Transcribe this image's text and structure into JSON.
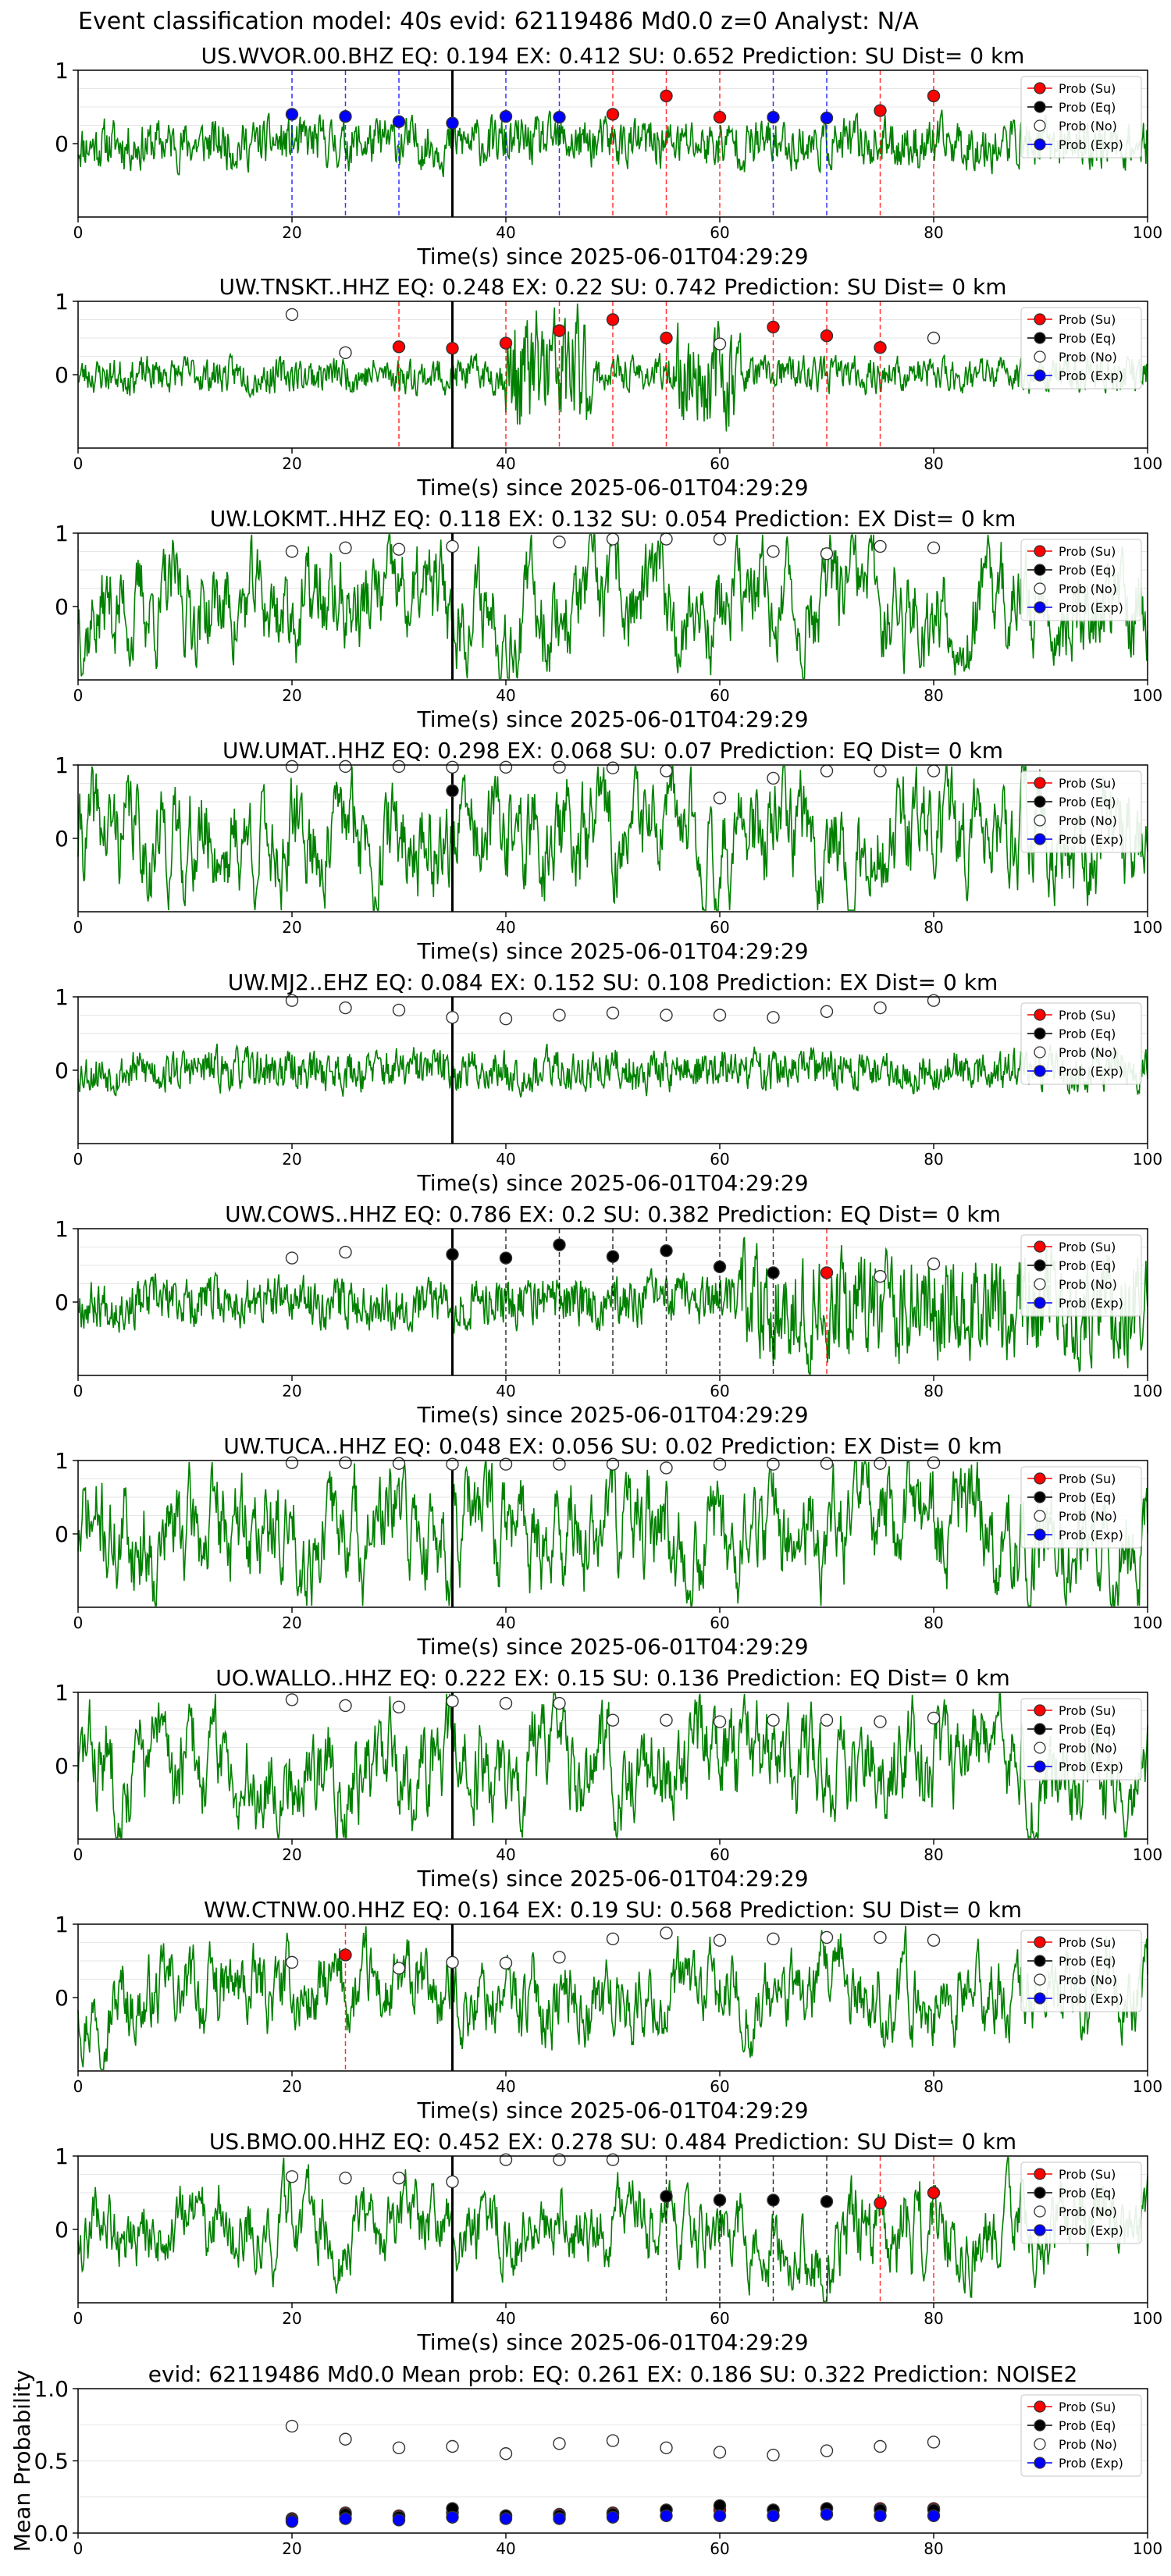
{
  "suptitle": "Event classification model: 40s evid: 62119486 Md0.0 z=0 Analyst: N/A",
  "xlabel": "Time(s) since 2025-06-01T04:29:29",
  "legend": [
    "Prob (Su)",
    "Prob (Eq)",
    "Prob (No)",
    "Prob (Exp)"
  ],
  "colors": {
    "waveform": "#008000",
    "su": "#ff0000",
    "eq": "#000000",
    "no": "#ffffff",
    "exp": "#0000ff"
  },
  "chart_data": [
    {
      "type": "line",
      "title": "US.WVOR.00.BHZ   EQ: 0.194   EX: 0.412   SU: 0.652   Prediction: SU    Dist= 0 km",
      "xlim": [
        0,
        100
      ],
      "ylim": [
        -1,
        1
      ],
      "xticks": [
        0,
        20,
        40,
        60,
        80,
        100
      ],
      "yticks": [
        1,
        0
      ],
      "vline": 35,
      "amp": 0.35,
      "seed": 11,
      "series": [
        {
          "name": "Prob (Su)",
          "x": [
            50,
            55,
            60,
            75,
            80
          ],
          "y": [
            0.4,
            0.65,
            0.36,
            0.45,
            0.65
          ]
        },
        {
          "name": "Prob (Exp)",
          "x": [
            20,
            25,
            30,
            35,
            40,
            45,
            65,
            70
          ],
          "y": [
            0.4,
            0.37,
            0.3,
            0.28,
            0.37,
            0.36,
            0.36,
            0.35
          ]
        }
      ],
      "dashes": [
        {
          "x": 20,
          "c": "exp"
        },
        {
          "x": 25,
          "c": "exp"
        },
        {
          "x": 30,
          "c": "exp"
        },
        {
          "x": 40,
          "c": "exp"
        },
        {
          "x": 45,
          "c": "exp"
        },
        {
          "x": 50,
          "c": "su"
        },
        {
          "x": 55,
          "c": "su"
        },
        {
          "x": 60,
          "c": "su"
        },
        {
          "x": 65,
          "c": "exp"
        },
        {
          "x": 70,
          "c": "exp"
        },
        {
          "x": 75,
          "c": "su"
        },
        {
          "x": 80,
          "c": "su"
        }
      ]
    },
    {
      "type": "line",
      "title": "UW.TNSKT..HHZ   EQ: 0.248   EX: 0.22   SU: 0.742   Prediction: SU    Dist= 0 km",
      "xlim": [
        0,
        100
      ],
      "ylim": [
        -1,
        1
      ],
      "xticks": [
        0,
        20,
        40,
        60,
        80,
        100
      ],
      "yticks": [
        1,
        0
      ],
      "vline": 35,
      "amp": 0.25,
      "seed": 23,
      "burst": [
        [
          40,
          48,
          0.9
        ],
        [
          56,
          62,
          0.7
        ]
      ],
      "series": [
        {
          "name": "Prob (Su)",
          "x": [
            30,
            35,
            40,
            45,
            50,
            55,
            65,
            70,
            75
          ],
          "y": [
            0.38,
            0.36,
            0.43,
            0.6,
            0.75,
            0.5,
            0.65,
            0.53,
            0.37
          ]
        },
        {
          "name": "Prob (No)",
          "x": [
            20,
            25,
            60,
            80
          ],
          "y": [
            0.82,
            0.3,
            0.42,
            0.5
          ]
        }
      ],
      "dashes": [
        {
          "x": 30,
          "c": "su"
        },
        {
          "x": 40,
          "c": "su"
        },
        {
          "x": 45,
          "c": "su"
        },
        {
          "x": 50,
          "c": "su"
        },
        {
          "x": 55,
          "c": "su"
        },
        {
          "x": 65,
          "c": "su"
        },
        {
          "x": 70,
          "c": "su"
        },
        {
          "x": 75,
          "c": "su"
        }
      ]
    },
    {
      "type": "line",
      "title": "UW.LOKMT..HHZ   EQ: 0.118   EX: 0.132   SU: 0.054   Prediction: EX    Dist= 0 km",
      "xlim": [
        0,
        100
      ],
      "ylim": [
        -1,
        1
      ],
      "xticks": [
        0,
        20,
        40,
        60,
        80,
        100
      ],
      "yticks": [
        1,
        0
      ],
      "vline": 35,
      "amp": 0.75,
      "seed": 37,
      "series": [
        {
          "name": "Prob (No)",
          "x": [
            20,
            25,
            30,
            35,
            45,
            50,
            55,
            60,
            65,
            70,
            75,
            80
          ],
          "y": [
            0.75,
            0.8,
            0.78,
            0.82,
            0.88,
            0.92,
            0.92,
            0.92,
            0.75,
            0.72,
            0.82,
            0.8
          ]
        }
      ],
      "dashes": []
    },
    {
      "type": "line",
      "title": "UW.UMAT..HHZ   EQ: 0.298   EX: 0.068   SU: 0.07   Prediction: EQ    Dist= 0 km",
      "xlim": [
        0,
        100
      ],
      "ylim": [
        -1,
        1
      ],
      "xticks": [
        0,
        20,
        40,
        60,
        80,
        100
      ],
      "yticks": [
        1,
        0
      ],
      "vline": 35,
      "amp": 0.8,
      "seed": 41,
      "series": [
        {
          "name": "Prob (No)",
          "x": [
            20,
            25,
            30,
            35,
            40,
            45,
            50,
            55,
            60,
            65,
            70,
            75,
            80
          ],
          "y": [
            0.98,
            0.98,
            0.98,
            0.97,
            0.97,
            0.97,
            0.96,
            0.92,
            0.55,
            0.82,
            0.92,
            0.92,
            0.92
          ]
        },
        {
          "name": "Prob (Eq)",
          "x": [
            35
          ],
          "y": [
            0.65
          ]
        }
      ],
      "dashes": []
    },
    {
      "type": "line",
      "title": "UW.MJ2..EHZ   EQ: 0.084   EX: 0.152   SU: 0.108   Prediction: EX    Dist= 0 km",
      "xlim": [
        0,
        100
      ],
      "ylim": [
        -1,
        1
      ],
      "xticks": [
        0,
        20,
        40,
        60,
        80,
        100
      ],
      "yticks": [
        1,
        0
      ],
      "vline": 35,
      "amp": 0.3,
      "seed": 53,
      "series": [
        {
          "name": "Prob (No)",
          "x": [
            20,
            25,
            30,
            35,
            40,
            45,
            50,
            55,
            60,
            65,
            70,
            75,
            80
          ],
          "y": [
            0.95,
            0.85,
            0.82,
            0.72,
            0.7,
            0.75,
            0.78,
            0.75,
            0.75,
            0.72,
            0.8,
            0.85,
            0.95
          ]
        }
      ],
      "dashes": []
    },
    {
      "type": "line",
      "title": "UW.COWS..HHZ   EQ: 0.786   EX: 0.2   SU: 0.382   Prediction: EQ    Dist= 0 km",
      "xlim": [
        0,
        100
      ],
      "ylim": [
        -1,
        1
      ],
      "xticks": [
        0,
        20,
        40,
        60,
        80,
        100
      ],
      "yticks": [
        1,
        0
      ],
      "vline": 35,
      "amp": 0.35,
      "seed": 67,
      "burst": [
        [
          62,
          100,
          0.75
        ]
      ],
      "series": [
        {
          "name": "Prob (Eq)",
          "x": [
            35,
            40,
            45,
            50,
            55,
            60,
            65
          ],
          "y": [
            0.65,
            0.6,
            0.78,
            0.62,
            0.7,
            0.48,
            0.4
          ]
        },
        {
          "name": "Prob (Su)",
          "x": [
            70
          ],
          "y": [
            0.4
          ]
        },
        {
          "name": "Prob (No)",
          "x": [
            20,
            25,
            75,
            80
          ],
          "y": [
            0.6,
            0.68,
            0.35,
            0.52
          ]
        }
      ],
      "dashes": [
        {
          "x": 40,
          "c": "eq"
        },
        {
          "x": 45,
          "c": "eq"
        },
        {
          "x": 50,
          "c": "eq"
        },
        {
          "x": 55,
          "c": "eq"
        },
        {
          "x": 60,
          "c": "eq"
        },
        {
          "x": 65,
          "c": "eq"
        },
        {
          "x": 70,
          "c": "su"
        }
      ]
    },
    {
      "type": "line",
      "title": "UW.TUCA..HHZ   EQ: 0.048   EX: 0.056   SU: 0.02   Prediction: EX    Dist= 0 km",
      "xlim": [
        0,
        100
      ],
      "ylim": [
        -1,
        1
      ],
      "xticks": [
        0,
        20,
        40,
        60,
        80,
        100
      ],
      "yticks": [
        1,
        0
      ],
      "vline": 35,
      "amp": 0.8,
      "seed": 71,
      "series": [
        {
          "name": "Prob (No)",
          "x": [
            20,
            25,
            30,
            35,
            40,
            45,
            50,
            55,
            60,
            65,
            70,
            75,
            80
          ],
          "y": [
            0.97,
            0.97,
            0.96,
            0.95,
            0.95,
            0.95,
            0.95,
            0.9,
            0.95,
            0.95,
            0.96,
            0.96,
            0.97
          ]
        }
      ],
      "dashes": []
    },
    {
      "type": "line",
      "title": "UO.WALLO..HHZ   EQ: 0.222   EX: 0.15   SU: 0.136   Prediction: EQ    Dist= 0 km",
      "xlim": [
        0,
        100
      ],
      "ylim": [
        -1,
        1
      ],
      "xticks": [
        0,
        20,
        40,
        60,
        80,
        100
      ],
      "yticks": [
        1,
        0
      ],
      "vline": 35,
      "amp": 0.75,
      "seed": 83,
      "series": [
        {
          "name": "Prob (No)",
          "x": [
            20,
            25,
            30,
            35,
            40,
            45,
            50,
            55,
            60,
            65,
            70,
            75,
            80
          ],
          "y": [
            0.9,
            0.82,
            0.8,
            0.88,
            0.85,
            0.85,
            0.62,
            0.62,
            0.6,
            0.62,
            0.62,
            0.6,
            0.65
          ]
        }
      ],
      "dashes": []
    },
    {
      "type": "line",
      "title": "WW.CTNW.00.HHZ   EQ: 0.164   EX: 0.19   SU: 0.568   Prediction: SU    Dist= 0 km",
      "xlim": [
        0,
        100
      ],
      "ylim": [
        -1,
        1
      ],
      "xticks": [
        0,
        20,
        40,
        60,
        80,
        100
      ],
      "yticks": [
        1,
        0
      ],
      "vline": 35,
      "amp": 0.6,
      "seed": 97,
      "series": [
        {
          "name": "Prob (Su)",
          "x": [
            25
          ],
          "y": [
            0.58
          ]
        },
        {
          "name": "Prob (No)",
          "x": [
            20,
            30,
            35,
            40,
            45,
            50,
            55,
            60,
            65,
            70,
            75,
            80
          ],
          "y": [
            0.48,
            0.4,
            0.48,
            0.47,
            0.55,
            0.8,
            0.88,
            0.78,
            0.8,
            0.82,
            0.82,
            0.78
          ]
        }
      ],
      "dashes": [
        {
          "x": 25,
          "c": "su"
        }
      ]
    },
    {
      "type": "line",
      "title": "US.BMO.00.HHZ   EQ: 0.452   EX: 0.278   SU: 0.484   Prediction: SU    Dist= 0 km",
      "xlim": [
        0,
        100
      ],
      "ylim": [
        -1,
        1
      ],
      "xticks": [
        0,
        20,
        40,
        60,
        80,
        100
      ],
      "yticks": [
        1,
        0
      ],
      "vline": 35,
      "amp": 0.55,
      "seed": 109,
      "burst": [
        [
          68,
          82,
          0.7
        ]
      ],
      "series": [
        {
          "name": "Prob (Eq)",
          "x": [
            55,
            60,
            65,
            70
          ],
          "y": [
            0.45,
            0.4,
            0.4,
            0.38
          ]
        },
        {
          "name": "Prob (Su)",
          "x": [
            75,
            80
          ],
          "y": [
            0.36,
            0.5
          ]
        },
        {
          "name": "Prob (No)",
          "x": [
            20,
            25,
            30,
            35,
            40,
            45,
            50
          ],
          "y": [
            0.72,
            0.7,
            0.7,
            0.65,
            0.95,
            0.95,
            0.95
          ]
        }
      ],
      "dashes": [
        {
          "x": 55,
          "c": "eq"
        },
        {
          "x": 60,
          "c": "eq"
        },
        {
          "x": 65,
          "c": "eq"
        },
        {
          "x": 70,
          "c": "eq"
        },
        {
          "x": 75,
          "c": "su"
        },
        {
          "x": 80,
          "c": "su"
        }
      ]
    },
    {
      "type": "scatter",
      "title": "evid: 62119486  Md0.0   Mean prob:   EQ: 0.261  EX: 0.186  SU: 0.322   Prediction: NOISE2",
      "ylabel": "Mean Probability",
      "xlim": [
        0,
        100
      ],
      "ylim": [
        0,
        1
      ],
      "xticks": [
        0,
        20,
        40,
        60,
        80,
        100
      ],
      "yticks": [
        1.0,
        0.5,
        0.0
      ],
      "series": [
        {
          "name": "Prob (No)",
          "x": [
            20,
            25,
            30,
            35,
            40,
            45,
            50,
            55,
            60,
            65,
            70,
            75,
            80
          ],
          "y": [
            0.74,
            0.65,
            0.59,
            0.6,
            0.55,
            0.62,
            0.64,
            0.59,
            0.56,
            0.54,
            0.57,
            0.6,
            0.63
          ]
        },
        {
          "name": "Prob (Su)",
          "x": [
            20,
            25,
            30,
            35,
            40,
            45,
            50,
            55,
            60,
            65,
            70,
            75,
            80
          ],
          "y": [
            0.1,
            0.14,
            0.12,
            0.14,
            0.12,
            0.13,
            0.14,
            0.16,
            0.16,
            0.16,
            0.17,
            0.17,
            0.17
          ]
        },
        {
          "name": "Prob (Eq)",
          "x": [
            20,
            25,
            30,
            35,
            40,
            45,
            50,
            55,
            60,
            65,
            70,
            75,
            80
          ],
          "y": [
            0.09,
            0.13,
            0.11,
            0.17,
            0.12,
            0.12,
            0.13,
            0.16,
            0.19,
            0.16,
            0.17,
            0.16,
            0.16
          ]
        },
        {
          "name": "Prob (Exp)",
          "x": [
            20,
            25,
            30,
            35,
            40,
            45,
            50,
            55,
            60,
            65,
            70,
            75,
            80
          ],
          "y": [
            0.08,
            0.1,
            0.09,
            0.11,
            0.1,
            0.1,
            0.11,
            0.12,
            0.12,
            0.12,
            0.13,
            0.12,
            0.12
          ]
        }
      ],
      "dashes": []
    }
  ]
}
